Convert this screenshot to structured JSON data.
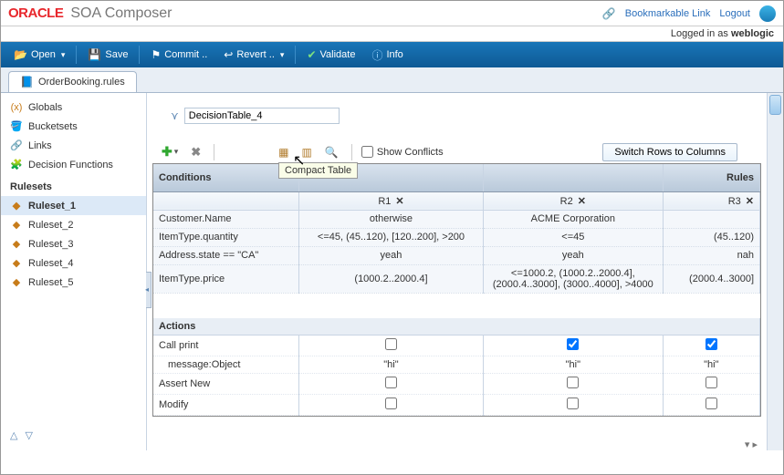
{
  "header": {
    "brand": "ORACLE",
    "title": "SOA Composer",
    "links": {
      "bookmark": "Bookmarkable Link",
      "logout": "Logout"
    },
    "user_prefix": "Logged in as ",
    "user": "weblogic"
  },
  "toolbar": {
    "open": "Open",
    "save": "Save",
    "commit": "Commit ..",
    "revert": "Revert ..",
    "validate": "Validate",
    "info": "Info"
  },
  "tab": {
    "label": "OrderBooking.rules"
  },
  "sidebar": {
    "top": [
      {
        "label": "Globals"
      },
      {
        "label": "Bucketsets"
      },
      {
        "label": "Links"
      },
      {
        "label": "Decision Functions"
      }
    ],
    "rulesets_header": "Rulesets",
    "rulesets": [
      {
        "label": "Ruleset_1",
        "selected": true
      },
      {
        "label": "Ruleset_2"
      },
      {
        "label": "Ruleset_3"
      },
      {
        "label": "Ruleset_4"
      },
      {
        "label": "Ruleset_5"
      }
    ]
  },
  "decisionTable": {
    "name": "DecisionTable_4",
    "toolbar": {
      "showConflicts": "Show Conflicts",
      "switch": "Switch Rows to Columns",
      "tooltip": "Compact Table"
    },
    "header": {
      "conditions": "Conditions",
      "rules": "Rules",
      "r1": "R1",
      "r2": "R2",
      "r3": "R3"
    },
    "conditions": [
      {
        "label": "Customer.Name",
        "r1": "otherwise",
        "r2": "ACME Corporation",
        "r3": ""
      },
      {
        "label": "ItemType.quantity",
        "r1": "<=45, (45..120), [120..200], >200",
        "r2": "<=45",
        "r3": "(45..120)"
      },
      {
        "label": "Address.state == \"CA\"",
        "r1": "yeah",
        "r2": "yeah",
        "r3": "nah"
      },
      {
        "label": "ItemType.price",
        "r1": "(1000.2..2000.4]",
        "r2": "<=1000.2, (1000.2..2000.4], (2000.4..3000], (3000..4000], >4000",
        "r3": "(2000.4..3000]"
      }
    ],
    "actionsHeader": "Actions",
    "actions": [
      {
        "label": "Call print",
        "type": "check",
        "r1": false,
        "r2": true,
        "r3": true
      },
      {
        "label": "message:Object",
        "type": "text",
        "indent": true,
        "r1": "\"hi\"",
        "r2": "\"hi\"",
        "r3": "\"hi\""
      },
      {
        "label": "Assert New",
        "type": "check",
        "r1": false,
        "r2": false,
        "r3": false
      },
      {
        "label": "Modify",
        "type": "check",
        "r1": false,
        "r2": false,
        "r3": false
      }
    ]
  }
}
